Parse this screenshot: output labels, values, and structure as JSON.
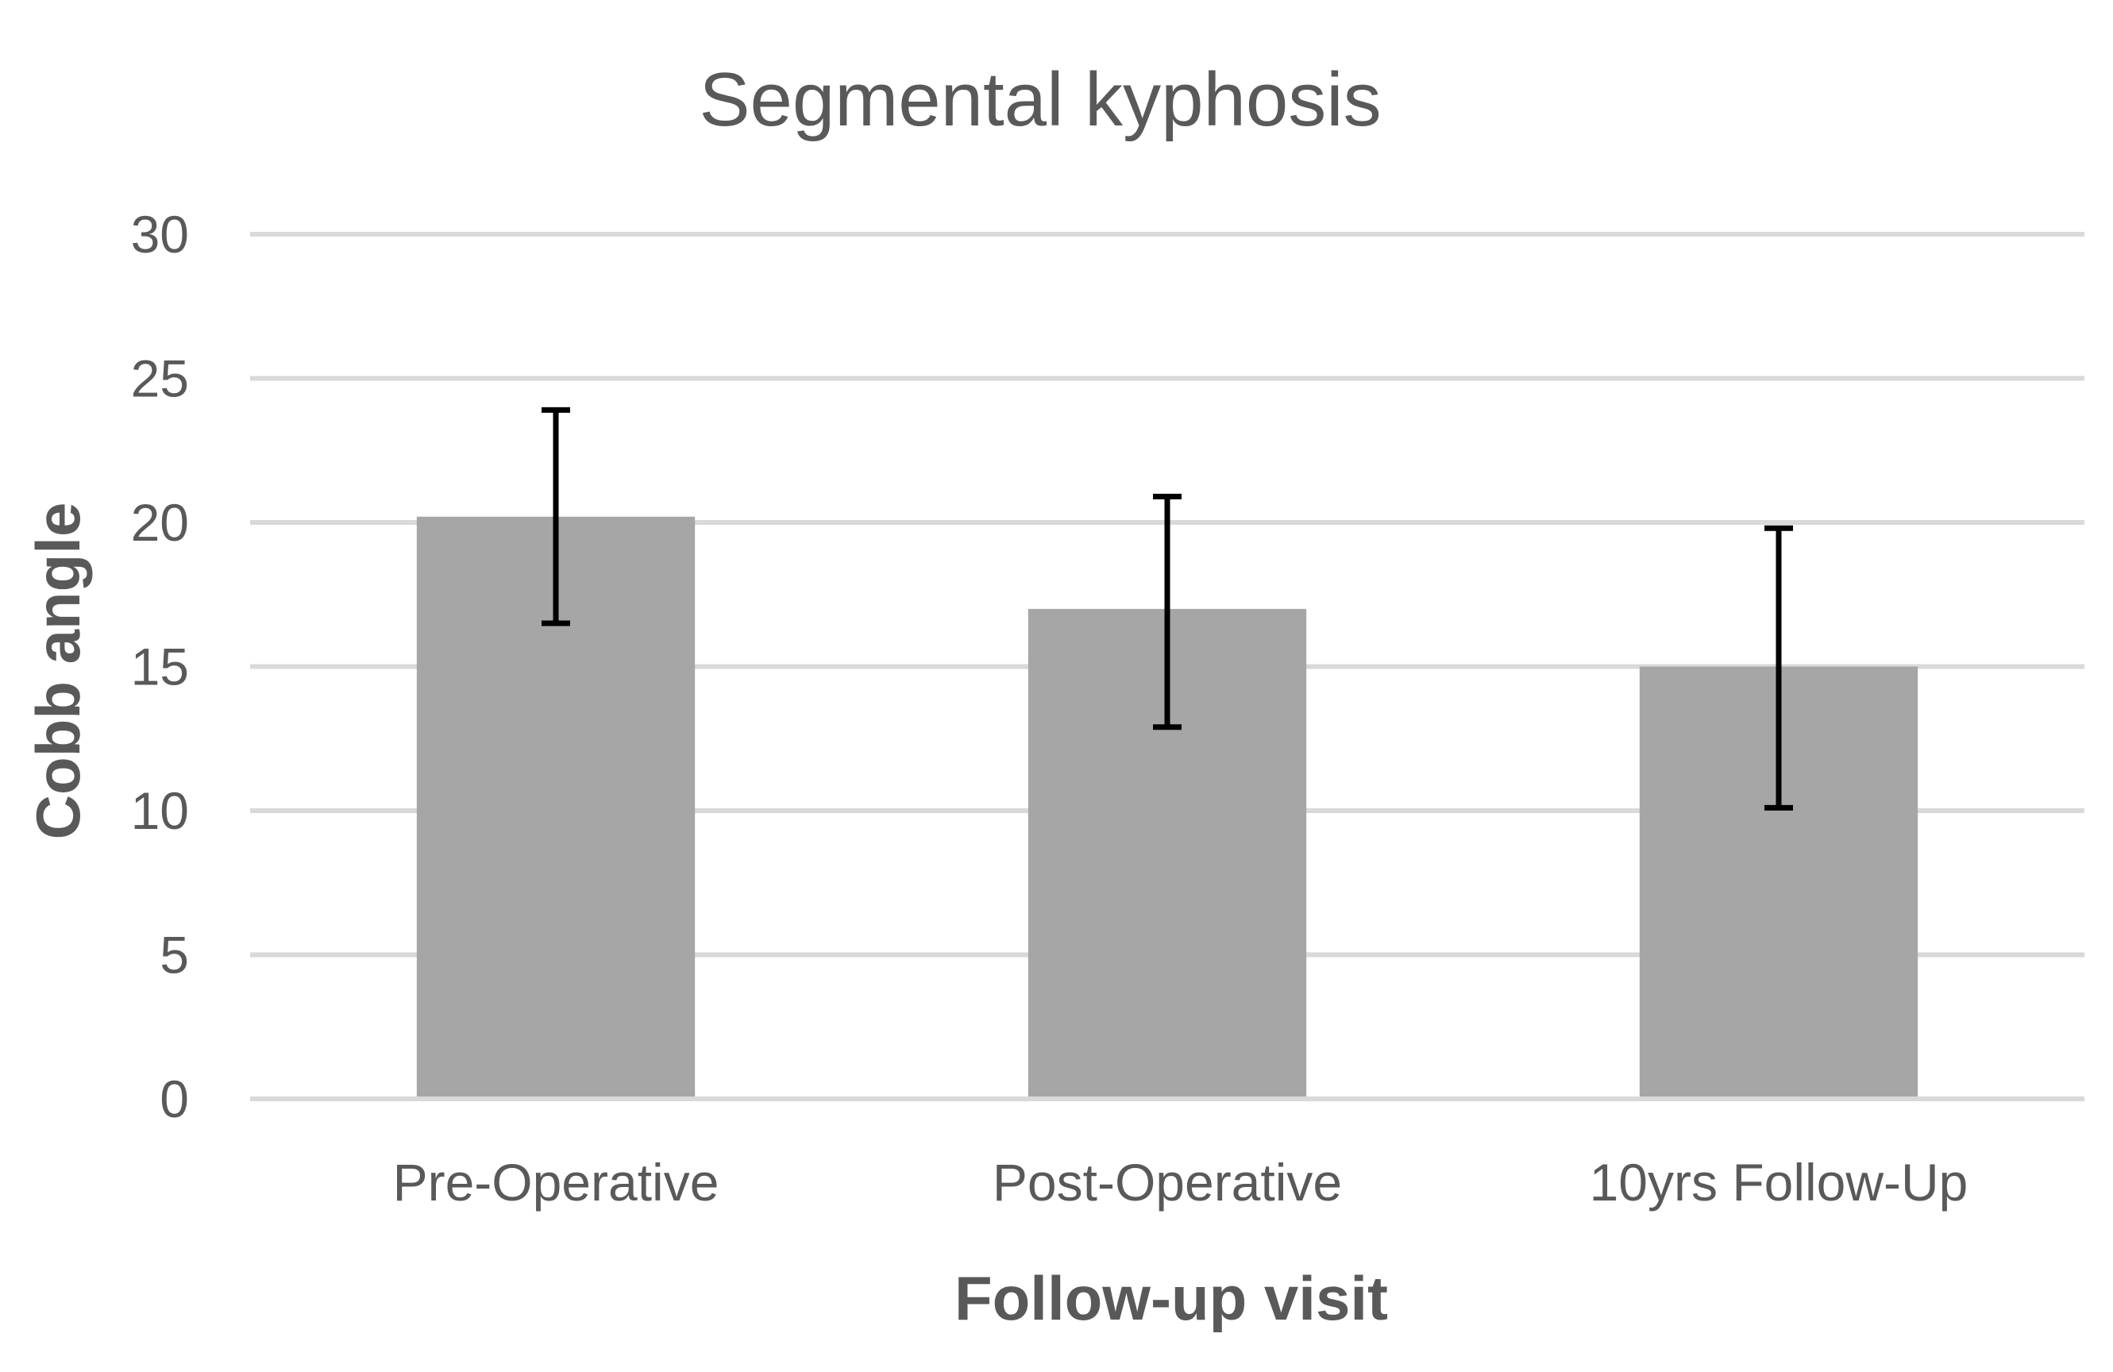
{
  "chart_data": {
    "type": "bar",
    "title": "Segmental kyphosis",
    "xlabel": "Follow-up visit",
    "ylabel": "Cobb angle",
    "categories": [
      "Pre-Operative",
      "Post-Operative",
      "10yrs Follow-Up"
    ],
    "series": [
      {
        "values": [
          20.2,
          17.0,
          15.0
        ],
        "error_low": [
          16.5,
          12.9,
          10.1
        ],
        "error_high": [
          23.9,
          20.9,
          19.8
        ],
        "color": "#a6a6a6"
      }
    ],
    "ylim": [
      0,
      30
    ],
    "yticks": [
      0,
      5,
      10,
      15,
      20,
      25,
      30
    ],
    "grid": true,
    "legend": "none"
  }
}
